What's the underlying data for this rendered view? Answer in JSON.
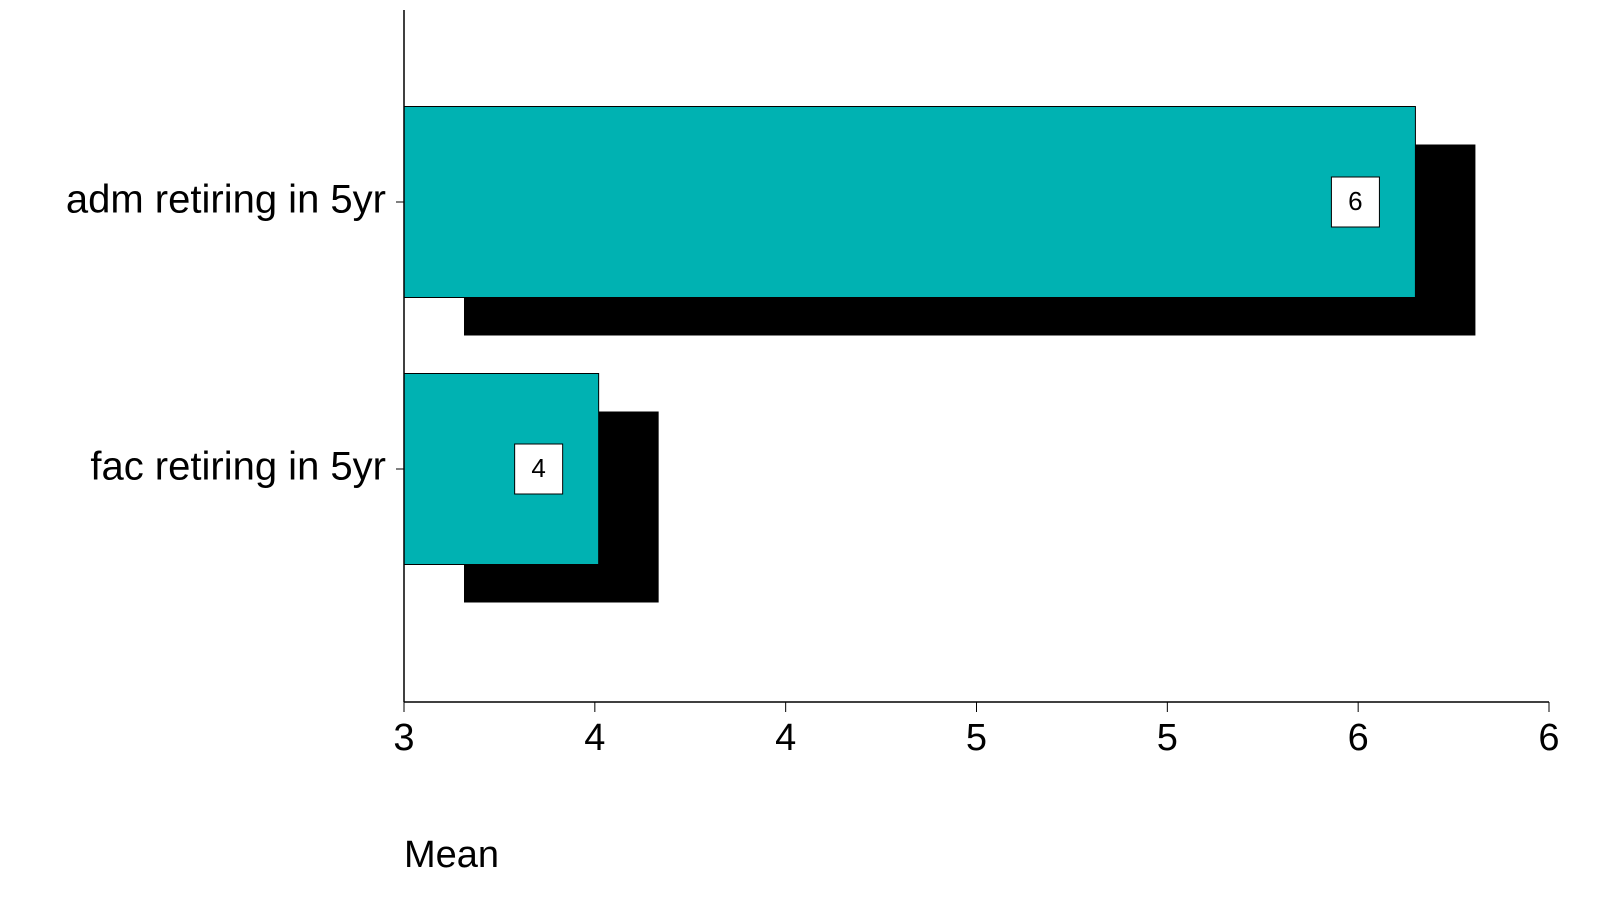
{
  "chart_data": {
    "type": "bar",
    "orientation": "horizontal",
    "categories": [
      "adm retiring in 5yr",
      "fac retiring in 5yr"
    ],
    "values": [
      5.65,
      3.51
    ],
    "value_labels": [
      "6",
      "4"
    ],
    "color": "#00b2b2",
    "shadow_color": "#000000",
    "x_label": "Mean",
    "xlim": [
      3,
      6
    ],
    "xticks": [
      3,
      {
        "value": 3.5,
        "label": "4"
      },
      4,
      {
        "value": 4.5,
        "label": "5"
      },
      5,
      {
        "value": 5.5,
        "label": "6"
      },
      6
    ]
  }
}
